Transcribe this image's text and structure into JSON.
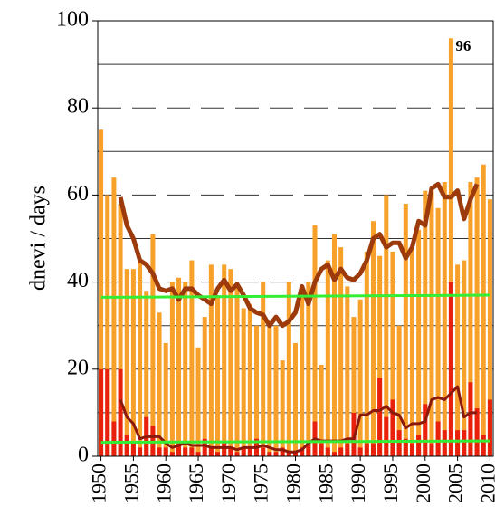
{
  "chart_data": {
    "type": "bar",
    "ylabel": "dnevi / days",
    "xlim": [
      1949.5,
      2010.5
    ],
    "xticks": [
      1950,
      1955,
      1960,
      1965,
      1970,
      1975,
      1980,
      1985,
      1990,
      1995,
      2000,
      2005,
      2010
    ],
    "ylim": [
      0,
      100
    ],
    "yticks": [
      0,
      20,
      40,
      60,
      80,
      100
    ],
    "yminor": [
      10,
      30,
      50,
      70,
      90
    ],
    "grid": true,
    "label_max": true,
    "series": [
      {
        "type": "bar",
        "color": "#f7a02a",
        "x": [
          1950,
          1951,
          1952,
          1953,
          1954,
          1955,
          1956,
          1957,
          1958,
          1959,
          1960,
          1961,
          1962,
          1963,
          1964,
          1965,
          1966,
          1967,
          1968,
          1969,
          1970,
          1971,
          1972,
          1973,
          1974,
          1975,
          1976,
          1977,
          1978,
          1979,
          1980,
          1981,
          1982,
          1983,
          1984,
          1985,
          1986,
          1987,
          1988,
          1989,
          1990,
          1991,
          1992,
          1993,
          1994,
          1995,
          1996,
          1997,
          1998,
          1999,
          2000,
          2001,
          2002,
          2003,
          2004,
          2005,
          2006,
          2007,
          2008,
          2009,
          2010
        ],
        "values": [
          75,
          60,
          64,
          58,
          43,
          43,
          45,
          38,
          51,
          33,
          26,
          40,
          41,
          40,
          45,
          25,
          32,
          44,
          37,
          44,
          43,
          39,
          34,
          35,
          30,
          40,
          30,
          30,
          22,
          40,
          26,
          38,
          40,
          53,
          21,
          45,
          51,
          48,
          39,
          32,
          36,
          47,
          54,
          46,
          60,
          47,
          30,
          58,
          48,
          52,
          61,
          61,
          57,
          63,
          96,
          44,
          45,
          63,
          64,
          67,
          59
        ]
      },
      {
        "type": "bar",
        "color": "#e8200c",
        "x": [
          1950,
          1951,
          1952,
          1953,
          1954,
          1955,
          1956,
          1957,
          1958,
          1959,
          1960,
          1961,
          1962,
          1963,
          1964,
          1965,
          1966,
          1967,
          1968,
          1969,
          1970,
          1971,
          1972,
          1973,
          1974,
          1975,
          1976,
          1977,
          1978,
          1979,
          1980,
          1981,
          1982,
          1983,
          1984,
          1985,
          1986,
          1987,
          1988,
          1989,
          1990,
          1991,
          1992,
          1993,
          1994,
          1995,
          1996,
          1997,
          1998,
          1999,
          2000,
          2001,
          2002,
          2003,
          2004,
          2005,
          2006,
          2007,
          2008,
          2009,
          2010
        ],
        "values": [
          20,
          20,
          8,
          20,
          5,
          3,
          2,
          9,
          7,
          2,
          2,
          1,
          3,
          2,
          2,
          1,
          4,
          2,
          1,
          3,
          2,
          1,
          2,
          2,
          4,
          2,
          1,
          1,
          2,
          1,
          1,
          2,
          3,
          8,
          3,
          2,
          1,
          2,
          3,
          10,
          2,
          3,
          3,
          18,
          9,
          13,
          6,
          4,
          3,
          5,
          12,
          3,
          8,
          6,
          40,
          6,
          6,
          17,
          11,
          5,
          13
        ]
      },
      {
        "type": "line",
        "color": "#9c3a0c",
        "width": 5,
        "x": [
          1953,
          1954,
          1955,
          1956,
          1957,
          1958,
          1959,
          1960,
          1961,
          1962,
          1963,
          1964,
          1965,
          1966,
          1967,
          1968,
          1969,
          1970,
          1971,
          1972,
          1973,
          1974,
          1975,
          1976,
          1977,
          1978,
          1979,
          1980,
          1981,
          1982,
          1983,
          1984,
          1985,
          1986,
          1987,
          1988,
          1989,
          1990,
          1991,
          1992,
          1993,
          1994,
          1995,
          1996,
          1997,
          1998,
          1999,
          2000,
          2001,
          2002,
          2003,
          2004,
          2005,
          2006,
          2007,
          2008
        ],
        "values": [
          59.5,
          53,
          50,
          45,
          44,
          42,
          38.5,
          38,
          38.5,
          36,
          38.5,
          38.5,
          37,
          36,
          35,
          38.5,
          40.5,
          38,
          39.5,
          37,
          34,
          33,
          32.5,
          30,
          32,
          30,
          31,
          33,
          39,
          35,
          40,
          43,
          44,
          40.5,
          43,
          41,
          40.5,
          42,
          45,
          50,
          51,
          48,
          49,
          49,
          45.5,
          48,
          54,
          53,
          61.5,
          62.5,
          59.5,
          59.5,
          61,
          54.5,
          59,
          62.5
        ]
      },
      {
        "type": "line",
        "color": "#8b1a0c",
        "width": 3,
        "x": [
          1953,
          1954,
          1955,
          1956,
          1957,
          1958,
          1959,
          1960,
          1961,
          1962,
          1963,
          1964,
          1965,
          1966,
          1967,
          1968,
          1969,
          1970,
          1971,
          1972,
          1973,
          1974,
          1975,
          1976,
          1977,
          1978,
          1979,
          1980,
          1981,
          1982,
          1983,
          1984,
          1985,
          1986,
          1987,
          1988,
          1989,
          1990,
          1991,
          1992,
          1993,
          1994,
          1995,
          1996,
          1997,
          1998,
          1999,
          2000,
          2001,
          2002,
          2003,
          2004,
          2005,
          2006,
          2007,
          2008
        ],
        "values": [
          13,
          9,
          7.5,
          4,
          4.5,
          4.5,
          4.5,
          3,
          2,
          2.5,
          3,
          2.5,
          2.5,
          2.5,
          2,
          2,
          2,
          2,
          1.5,
          2,
          2,
          2,
          2.5,
          2,
          1.5,
          1.5,
          1,
          1,
          1.5,
          3,
          4,
          3.5,
          3.5,
          3.5,
          3.5,
          4,
          4,
          9.5,
          9.5,
          10.5,
          10.5,
          11.5,
          10,
          9.5,
          6.5,
          7.5,
          7.5,
          8,
          13,
          13.5,
          13,
          14.5,
          16,
          9,
          10,
          10
        ]
      },
      {
        "type": "line",
        "color": "#33ee33",
        "width": 3,
        "x": [
          1950,
          2010
        ],
        "values": [
          36.5,
          37
        ]
      },
      {
        "type": "line",
        "color": "#33ee33",
        "width": 3,
        "x": [
          1950,
          2010
        ],
        "values": [
          3.2,
          3.5
        ]
      }
    ]
  }
}
